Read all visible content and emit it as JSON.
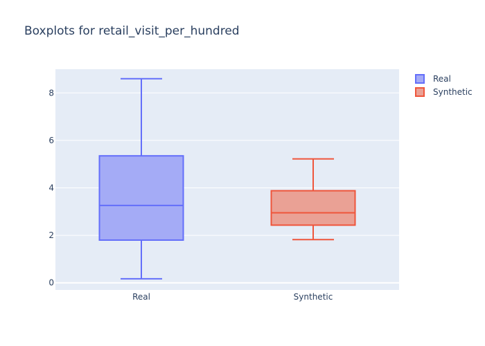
{
  "chart_data": {
    "type": "box",
    "title": "Boxplots for retail_visit_per_hundred",
    "categories": [
      "Real",
      "Synthetic"
    ],
    "ylim": [
      -0.3,
      9.0
    ],
    "yticks": [
      0,
      2,
      4,
      6,
      8
    ],
    "series": [
      {
        "name": "Real",
        "stroke": "#636efa",
        "fill": "#a4abf6",
        "min": 0.17,
        "q1": 1.8,
        "median": 3.26,
        "q3": 5.35,
        "max": 8.6
      },
      {
        "name": "Synthetic",
        "stroke": "#ef553b",
        "fill": "#eaa195",
        "min": 1.82,
        "q1": 2.43,
        "median": 2.95,
        "q3": 3.88,
        "max": 5.22
      }
    ],
    "legend": [
      "Real",
      "Synthetic"
    ],
    "legend_position": "top-right"
  }
}
